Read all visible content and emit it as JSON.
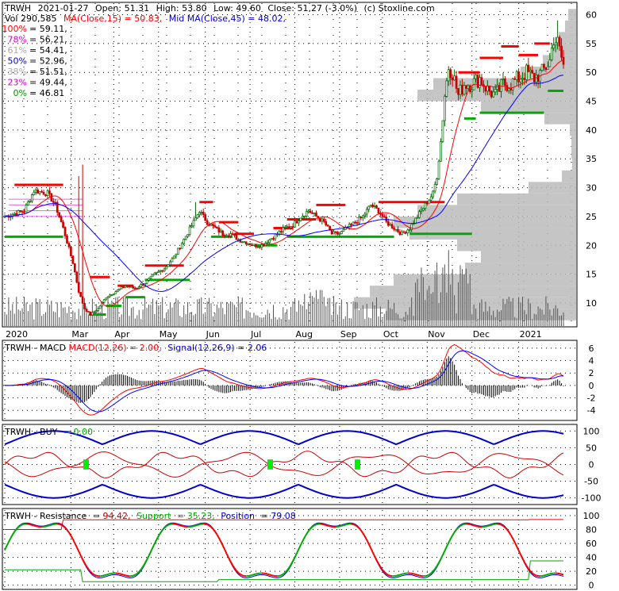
{
  "chart_data": {
    "type": "candlestick",
    "symbol": "TRWH",
    "header": {
      "symbol": "TRWH",
      "date": "2021-01-27",
      "open_label": "Open: 51.31",
      "high_label": "High: 53.80",
      "low_label": "Low: 49.60",
      "close_label": "Close: 51.27 (-3.0%)",
      "source": "(c) Stoxline.com",
      "vol_label": "Vol 290,585",
      "ma_label": "MA(Close,15) = 50.83,",
      "midma_label": "Mid MA(Close,45) = 48.02,"
    },
    "fib_levels": [
      {
        "pct": "100%",
        "value": "= 59.11,",
        "color": "#ff0000"
      },
      {
        "pct": "78%",
        "value": "= 56.21,",
        "color": "#cc00cc"
      },
      {
        "pct": "61%",
        "value": "= 54.41,",
        "color": "#aaaaaa"
      },
      {
        "pct": "50%",
        "value": "= 52.96,",
        "color": "#0000cc"
      },
      {
        "pct": "38%",
        "value": "= 51.51,",
        "color": "#aaaaaa"
      },
      {
        "pct": "23%",
        "value": "= 49.44,",
        "color": "#cc00cc"
      },
      {
        "pct": "0%",
        "value": "= 46.81",
        "color": "#009900"
      }
    ],
    "price_ticks": [
      60,
      55,
      50,
      45,
      40,
      35,
      30,
      25,
      20,
      15,
      10
    ],
    "price_ylim": [
      6,
      62
    ],
    "months": [
      "2020",
      "Mar",
      "Apr",
      "May",
      "Jun",
      "Jul",
      "Aug",
      "Sep",
      "Oct",
      "Nov",
      "Dec",
      "2021"
    ],
    "price_anchors": [
      [
        0,
        25
      ],
      [
        10,
        26
      ],
      [
        15,
        29.5
      ],
      [
        22,
        29
      ],
      [
        26,
        27
      ],
      [
        30,
        23
      ],
      [
        35,
        17
      ],
      [
        38,
        12
      ],
      [
        41,
        9
      ],
      [
        44,
        8
      ],
      [
        48,
        9
      ],
      [
        52,
        11
      ],
      [
        57,
        12
      ],
      [
        62,
        13
      ],
      [
        67,
        12.5
      ],
      [
        72,
        13.5
      ],
      [
        77,
        15
      ],
      [
        82,
        16
      ],
      [
        87,
        18
      ],
      [
        92,
        21
      ],
      [
        97,
        24
      ],
      [
        100,
        26
      ],
      [
        104,
        24
      ],
      [
        108,
        23
      ],
      [
        112,
        22
      ],
      [
        116,
        22
      ],
      [
        120,
        21
      ],
      [
        124,
        20.5
      ],
      [
        128,
        20
      ],
      [
        132,
        20
      ],
      [
        136,
        21
      ],
      [
        140,
        22
      ],
      [
        144,
        23
      ],
      [
        148,
        23.5
      ],
      [
        152,
        25
      ],
      [
        156,
        26
      ],
      [
        160,
        25
      ],
      [
        164,
        24
      ],
      [
        168,
        22
      ],
      [
        172,
        22
      ],
      [
        176,
        23
      ],
      [
        180,
        24
      ],
      [
        184,
        25
      ],
      [
        188,
        27
      ],
      [
        192,
        26
      ],
      [
        196,
        24
      ],
      [
        200,
        23
      ],
      [
        204,
        22
      ],
      [
        208,
        23
      ],
      [
        212,
        25
      ],
      [
        216,
        27
      ],
      [
        220,
        29
      ],
      [
        222,
        32
      ],
      [
        224,
        38
      ],
      [
        226,
        46
      ],
      [
        228,
        51
      ],
      [
        230,
        50
      ],
      [
        233,
        46
      ],
      [
        236,
        48
      ],
      [
        240,
        48
      ],
      [
        244,
        49
      ],
      [
        248,
        47
      ],
      [
        252,
        46
      ],
      [
        256,
        48
      ],
      [
        260,
        48
      ],
      [
        264,
        49
      ],
      [
        268,
        50
      ],
      [
        272,
        49
      ],
      [
        276,
        50
      ],
      [
        280,
        52
      ],
      [
        282,
        56
      ],
      [
        284,
        55
      ],
      [
        287,
        51.3
      ]
    ],
    "volume_profile": [
      [
        60,
        10
      ],
      [
        58,
        14
      ],
      [
        56,
        22
      ],
      [
        54,
        30
      ],
      [
        52,
        42
      ],
      [
        50,
        70
      ],
      [
        48,
        180
      ],
      [
        46,
        200
      ],
      [
        44,
        120
      ],
      [
        42,
        40
      ],
      [
        40,
        8
      ],
      [
        38,
        6
      ],
      [
        36,
        6
      ],
      [
        34,
        5
      ],
      [
        32,
        18
      ],
      [
        30,
        60
      ],
      [
        28,
        150
      ],
      [
        26,
        200
      ],
      [
        24,
        230
      ],
      [
        22,
        210
      ],
      [
        20,
        150
      ],
      [
        18,
        120
      ],
      [
        16,
        140
      ],
      [
        14,
        230
      ],
      [
        12,
        260
      ],
      [
        10,
        280
      ],
      [
        8,
        240
      ]
    ],
    "macd": {
      "label_name": "TRWH - MACD",
      "label_value": "MACD(12,26) = 2.00,",
      "label_signal": "Signal(12,26,9) = 2.06",
      "ticks": [
        6,
        4,
        2,
        0,
        -2,
        -4
      ],
      "ylim": [
        -5.5,
        7
      ]
    },
    "buy": {
      "label_name": "TRWH - BUY",
      "label_value": "= 0.00",
      "ticks": [
        100,
        50,
        0,
        -50,
        -100
      ],
      "ylim": [
        -115,
        115
      ],
      "signals": [
        108,
        340,
        450
      ]
    },
    "resistance": {
      "label_name": "TRWH - Resistance",
      "label_res": "= 94.42,",
      "label_support_name": "Support",
      "label_support": "= 35.23,",
      "label_position_name": "Position",
      "label_position": "= 79.08",
      "ticks": [
        100,
        80,
        60,
        40,
        20,
        0
      ],
      "ylim": [
        -5,
        108
      ]
    },
    "colors": {
      "up": "#006600",
      "down": "#cc0000",
      "ma": "#ff0000",
      "midma": "#0000ff",
      "resistance": "#ff0000",
      "support": "#00aa00",
      "profile": "#bbbbbb"
    }
  }
}
